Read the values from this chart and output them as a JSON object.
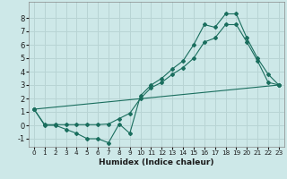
{
  "title": "",
  "xlabel": "Humidex (Indice chaleur)",
  "ylabel": "",
  "bg_color": "#cde8e8",
  "grid_color": "#b8d4d4",
  "line_color": "#1a6e5e",
  "xlim": [
    -0.5,
    23.5
  ],
  "ylim": [
    -1.6,
    9.2
  ],
  "xticks": [
    0,
    1,
    2,
    3,
    4,
    5,
    6,
    7,
    8,
    9,
    10,
    11,
    12,
    13,
    14,
    15,
    16,
    17,
    18,
    19,
    20,
    21,
    22,
    23
  ],
  "yticks": [
    -1,
    0,
    1,
    2,
    3,
    4,
    5,
    6,
    7,
    8
  ],
  "line1_x": [
    0,
    1,
    2,
    3,
    4,
    5,
    6,
    7,
    8,
    9,
    10,
    11,
    12,
    13,
    14,
    15,
    16,
    17,
    18,
    19,
    20,
    21,
    22,
    23
  ],
  "line1_y": [
    1.2,
    0.0,
    0.0,
    -0.3,
    -0.6,
    -1.0,
    -1.0,
    -1.3,
    0.1,
    -0.6,
    2.2,
    3.0,
    3.5,
    4.2,
    4.8,
    6.0,
    7.5,
    7.3,
    8.3,
    8.3,
    6.5,
    5.0,
    3.8,
    3.0
  ],
  "line2_x": [
    0,
    1,
    2,
    3,
    4,
    5,
    6,
    7,
    8,
    9,
    10,
    11,
    12,
    13,
    14,
    15,
    16,
    17,
    18,
    19,
    20,
    21,
    22,
    23
  ],
  "line2_y": [
    1.2,
    0.05,
    0.05,
    0.05,
    0.05,
    0.05,
    0.05,
    0.1,
    0.5,
    0.9,
    2.0,
    2.8,
    3.2,
    3.8,
    4.3,
    5.0,
    6.2,
    6.5,
    7.5,
    7.5,
    6.2,
    4.8,
    3.2,
    3.0
  ],
  "line3_x": [
    0,
    23
  ],
  "line3_y": [
    1.2,
    3.0
  ],
  "xlabel_fontsize": 6.5,
  "xlabel_fontweight": "bold",
  "ytick_fontsize": 6.0,
  "xtick_fontsize": 5.2
}
